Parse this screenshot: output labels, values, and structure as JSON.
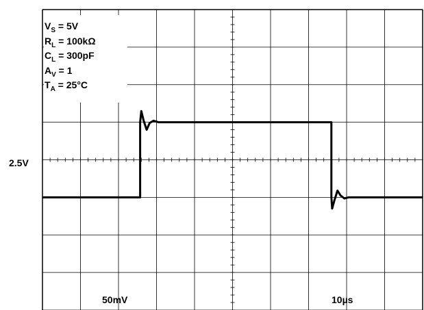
{
  "chart_data": {
    "type": "line",
    "grid": true,
    "divisions": {
      "x": 10,
      "y": 8
    },
    "x_scale_label": "10µs",
    "y_scale_label": "50mV",
    "ref_level_label": "2.5V",
    "x_range_div": [
      0,
      10
    ],
    "y_range_div": [
      0,
      8
    ],
    "conditions": [
      {
        "symbol": "V",
        "sub": "S",
        "rest": " = 5V"
      },
      {
        "symbol": "R",
        "sub": "L",
        "rest": " = 100kΩ"
      },
      {
        "symbol": "C",
        "sub": "L",
        "rest": " = 300pF"
      },
      {
        "symbol": "A",
        "sub": "V",
        "rest": " = 1"
      },
      {
        "symbol": "T",
        "sub": "A",
        "rest": " = 25°C"
      }
    ],
    "series": [
      {
        "x_div": [
          0,
          2.57,
          2.57,
          2.6,
          2.66,
          2.74,
          2.82,
          2.92,
          3.05,
          3.2,
          7.6,
          7.6,
          7.62,
          7.68,
          7.76,
          7.84,
          7.94,
          8.05,
          8.2,
          10
        ],
        "y_div": [
          3.0,
          3.0,
          5.0,
          5.3,
          5.05,
          4.8,
          4.98,
          5.04,
          5.0,
          5.0,
          5.0,
          3.0,
          2.7,
          2.92,
          3.18,
          3.05,
          2.97,
          3.0,
          3.0,
          3.0
        ]
      }
    ]
  }
}
